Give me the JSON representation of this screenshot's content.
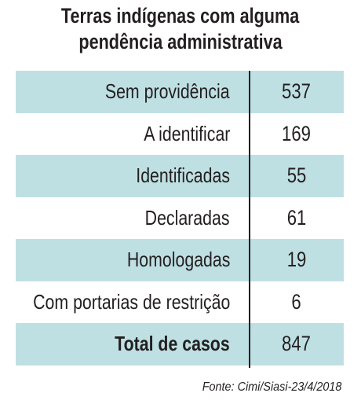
{
  "header": {
    "title_lines": [
      "Terras indígenas com alguma",
      "pendência administrativa"
    ]
  },
  "table": {
    "rows": [
      [
        "Sem providência",
        "537"
      ],
      [
        "A identificar",
        "169"
      ],
      [
        "Identificadas",
        "55"
      ],
      [
        "Declaradas",
        "61"
      ],
      [
        "Homologadas",
        "19"
      ],
      [
        "Com portarias de restrição",
        "6"
      ],
      [
        "Total de casos",
        "847"
      ]
    ]
  },
  "source": "Fonte: Cimi/Siasi-23/4/2018"
}
